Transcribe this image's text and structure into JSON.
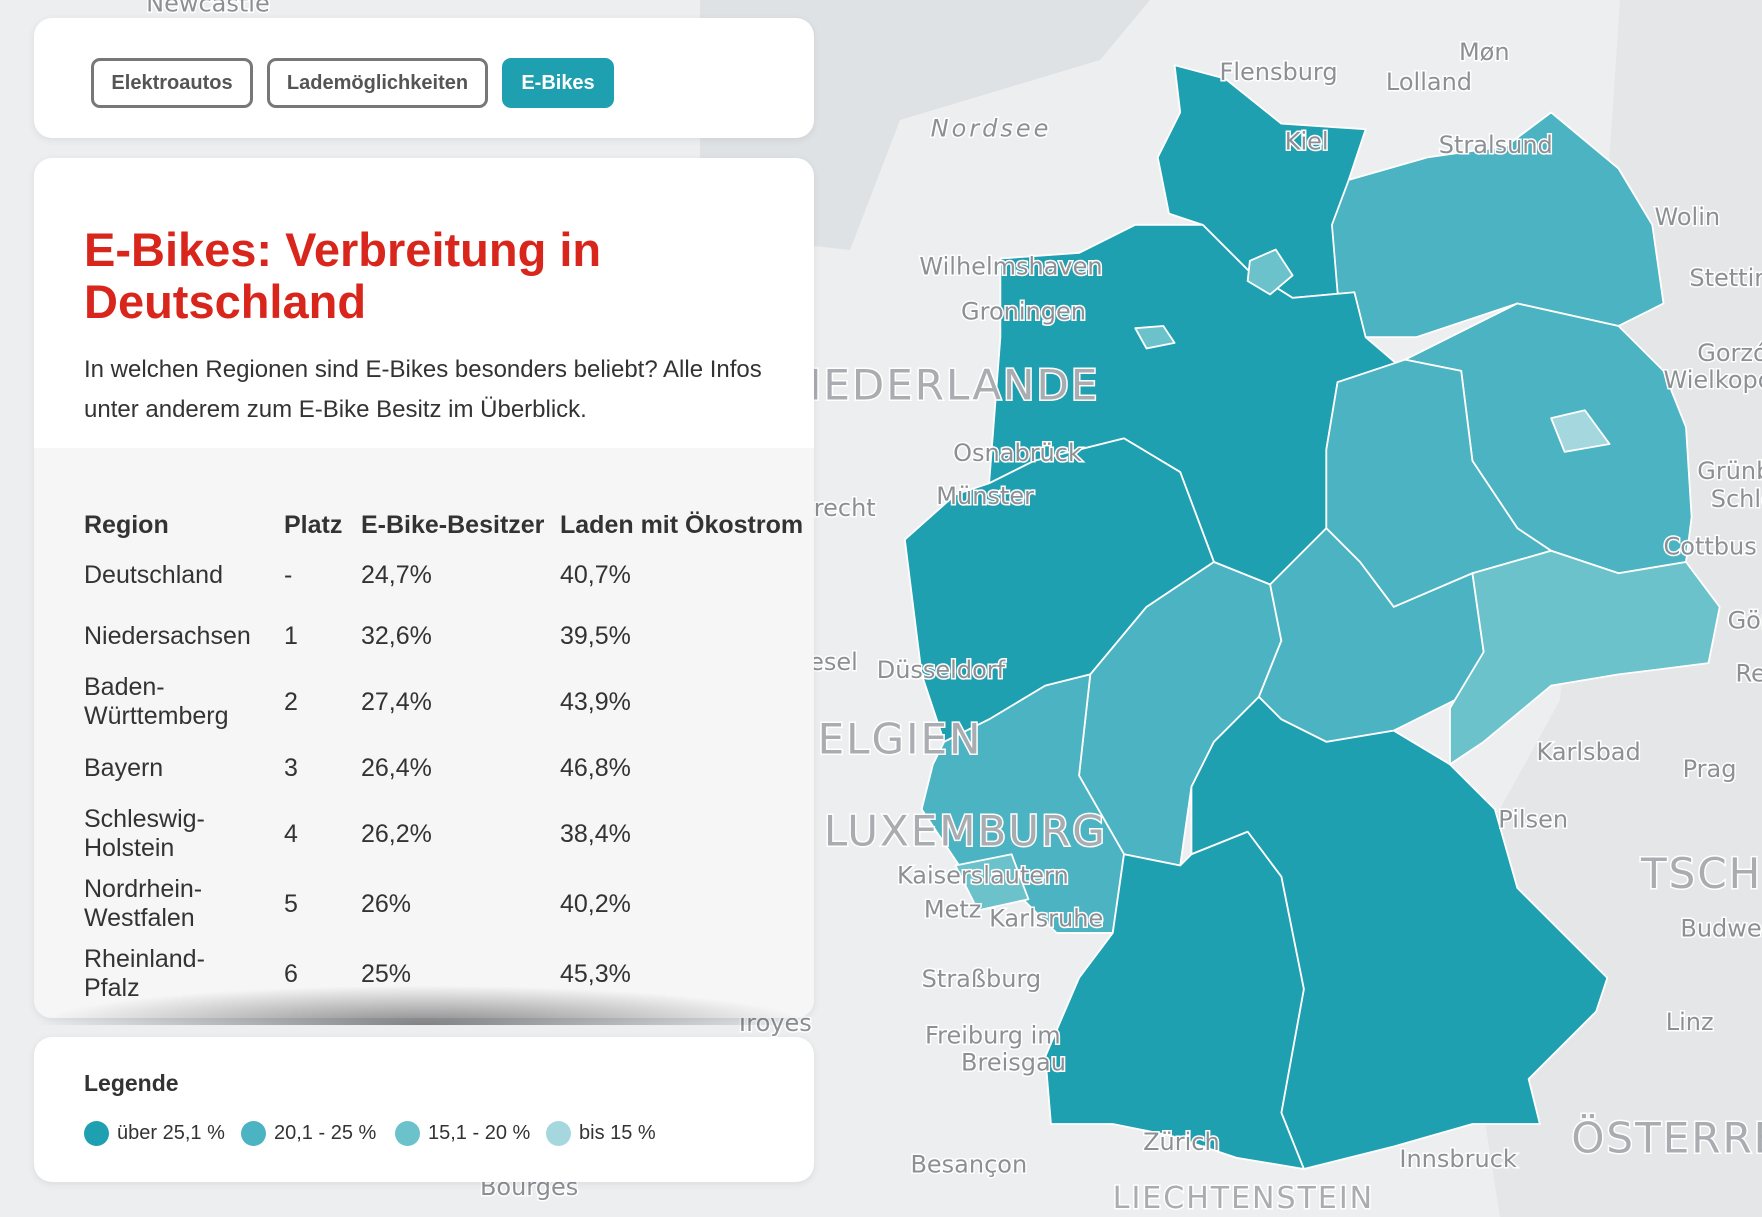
{
  "tabs": [
    "Elektroautos",
    "Lademöglichkeiten",
    "E-Bikes"
  ],
  "active_tab": 2,
  "panel": {
    "title": "E-Bikes: Verbreitung in Deutschland",
    "description": "In welchen Regionen sind E-Bikes besonders beliebt? Alle Infos unter anderem zum E-Bike Besitz im Überblick."
  },
  "table": {
    "header": [
      "Region",
      "Platz",
      "E-Bike-Besitzer",
      "Laden mit Ökostrom"
    ],
    "rows": [
      [
        "Deutschland",
        "-",
        "24,7%",
        "40,7%"
      ],
      [
        "Niedersachsen",
        "1",
        "32,6%",
        "39,5%"
      ],
      [
        "Baden-Württemberg",
        "2",
        "27,4%",
        "43,9%"
      ],
      [
        "Bayern",
        "3",
        "26,4%",
        "46,8%"
      ],
      [
        "Schleswig-Holstein",
        "4",
        "26,2%",
        "38,4%"
      ],
      [
        "Nordrhein-Westfalen",
        "5",
        "26%",
        "40,2%"
      ],
      [
        "Rheinland-Pfalz",
        "6",
        "25%",
        "45,3%"
      ]
    ]
  },
  "legend": {
    "title": "Legende",
    "items": [
      {
        "label": "über 25,1 %",
        "color": "#1fa0b1"
      },
      {
        "label": "20,1 - 25 %",
        "color": "#4bb3c1"
      },
      {
        "label": "15,1 - 20 %",
        "color": "#6cc2cb"
      },
      {
        "label": "bis 15 %",
        "color": "#a4d8de"
      }
    ]
  },
  "map_labels": [
    "Newcastle",
    "Flensburg",
    "Møn",
    "Lolland",
    "Nordsee",
    "Kiel",
    "Stralsund",
    "Wolin",
    "Stettin",
    "Wilhelmshaven",
    "Groningen",
    "NIEDERLANDE",
    "Osnabrück",
    "Münster",
    "Utrecht",
    "Gorzów",
    "Wielkopolski",
    "Grünberg",
    "Schlesien",
    "Cottbus",
    "Görlitz",
    "Reichenberg",
    "Wesel",
    "Düsseldorf",
    "BELGIEN",
    "Karlsbad",
    "Prag",
    "Pilsen",
    "LUXEMBURG",
    "TSCHECHIEN",
    "Kaiserslautern",
    "Metz",
    "Karlsruhe",
    "Budweis",
    "Straßburg",
    "Troyes",
    "Linz",
    "Freiburg im",
    "Breisgau",
    "Zürich",
    "Innsbruck",
    "Besançon",
    "ÖSTERREICH",
    "Bourges",
    "LIECHTENSTEIN"
  ]
}
